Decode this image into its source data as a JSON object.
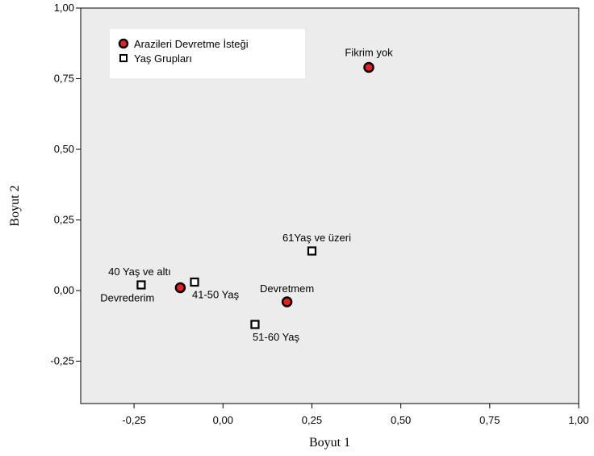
{
  "chart_data": {
    "type": "scatter",
    "xlabel": "Boyut 1",
    "ylabel": "Boyut 2",
    "xlim": [
      -0.4,
      1.0
    ],
    "ylim": [
      -0.4,
      1.0
    ],
    "x_ticks": [
      "-0,25",
      "0,00",
      "0,25",
      "0,50",
      "0,75",
      "1,00"
    ],
    "x_tick_values": [
      -0.25,
      0.0,
      0.25,
      0.5,
      0.75,
      1.0
    ],
    "y_ticks": [
      "1,00",
      "0,75",
      "0,50",
      "0,25",
      "0,00",
      "-0,25"
    ],
    "y_tick_values": [
      1.0,
      0.75,
      0.5,
      0.25,
      0.0,
      -0.25
    ],
    "grid": false,
    "legend_position": "top-left",
    "legend": [
      {
        "label": "Arazileri Devretme İsteği",
        "marker": "circle"
      },
      {
        "label": "Yaş Grupları",
        "marker": "square"
      }
    ],
    "series": [
      {
        "name": "Arazileri Devretme İsteği",
        "marker": "circle",
        "points": [
          {
            "label": "Fikrim yok",
            "x": 0.41,
            "y": 0.79
          },
          {
            "label": "Devrederim",
            "x": -0.12,
            "y": 0.01
          },
          {
            "label": "Devretmem",
            "x": 0.18,
            "y": -0.04
          }
        ]
      },
      {
        "name": "Yaş Grupları",
        "marker": "square",
        "points": [
          {
            "label": "40 Yaş ve altı",
            "x": -0.23,
            "y": 0.02
          },
          {
            "label": "41-50 Yaş",
            "x": -0.08,
            "y": 0.03
          },
          {
            "label": "51-60 Yaş",
            "x": 0.09,
            "y": -0.12
          },
          {
            "label": "61Yaş ve üzeri",
            "x": 0.25,
            "y": 0.14
          }
        ]
      }
    ]
  },
  "colors": {
    "plot_background": "#ececec",
    "circle_fill": "#ea1f24",
    "circle_stroke": "#000000",
    "square_fill": "#ffffff",
    "square_stroke": "#000000"
  }
}
